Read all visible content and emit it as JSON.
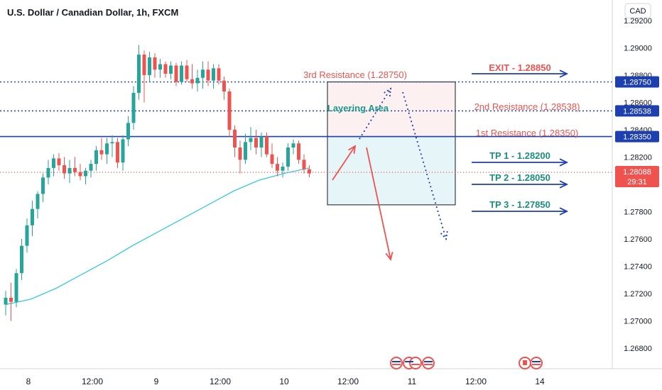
{
  "header": {
    "title": "U.S. Dollar / Canadian Dollar, 1h, FXCM",
    "currency": "CAD"
  },
  "chart_data": {
    "type": "candlestick",
    "title": "U.S. Dollar / Canadian Dollar, 1h, FXCM",
    "ylim": [
      1.2665,
      1.2935
    ],
    "y_ticks": [
      "1.29200",
      "1.29000",
      "1.28800",
      "1.28600",
      "1.28400",
      "1.28200",
      "1.28000",
      "1.27800",
      "1.27600",
      "1.27400",
      "1.27200",
      "1.27000",
      "1.26800"
    ],
    "x_ticks": [
      "8",
      "12:00",
      "9",
      "12:00",
      "10",
      "12:00",
      "11",
      "12:00",
      "14"
    ],
    "x_tick_bars": [
      0,
      12,
      24,
      36,
      48,
      60,
      72,
      84,
      96
    ],
    "candles": [
      {
        "o": 1.2712,
        "h": 1.2722,
        "l": 1.2704,
        "c": 1.2717
      },
      {
        "o": 1.2717,
        "h": 1.2728,
        "l": 1.27,
        "c": 1.2714
      },
      {
        "o": 1.2714,
        "h": 1.2738,
        "l": 1.271,
        "c": 1.2735
      },
      {
        "o": 1.2735,
        "h": 1.276,
        "l": 1.273,
        "c": 1.2755
      },
      {
        "o": 1.2755,
        "h": 1.2775,
        "l": 1.275,
        "c": 1.277
      },
      {
        "o": 1.277,
        "h": 1.2788,
        "l": 1.2762,
        "c": 1.2782
      },
      {
        "o": 1.2782,
        "h": 1.2795,
        "l": 1.2775,
        "c": 1.2793
      },
      {
        "o": 1.2793,
        "h": 1.2808,
        "l": 1.2787,
        "c": 1.2805
      },
      {
        "o": 1.2805,
        "h": 1.2818,
        "l": 1.28,
        "c": 1.2812
      },
      {
        "o": 1.2812,
        "h": 1.2822,
        "l": 1.2806,
        "c": 1.2819
      },
      {
        "o": 1.2819,
        "h": 1.2823,
        "l": 1.281,
        "c": 1.2814
      },
      {
        "o": 1.2814,
        "h": 1.282,
        "l": 1.2804,
        "c": 1.2808
      },
      {
        "o": 1.2808,
        "h": 1.2818,
        "l": 1.2801,
        "c": 1.2812
      },
      {
        "o": 1.2812,
        "h": 1.282,
        "l": 1.2806,
        "c": 1.2809
      },
      {
        "o": 1.2809,
        "h": 1.2815,
        "l": 1.2803,
        "c": 1.2806
      },
      {
        "o": 1.2806,
        "h": 1.2812,
        "l": 1.28,
        "c": 1.281
      },
      {
        "o": 1.281,
        "h": 1.2818,
        "l": 1.2805,
        "c": 1.2815
      },
      {
        "o": 1.2815,
        "h": 1.2828,
        "l": 1.281,
        "c": 1.2825
      },
      {
        "o": 1.2825,
        "h": 1.2834,
        "l": 1.2818,
        "c": 1.2822
      },
      {
        "o": 1.2822,
        "h": 1.2834,
        "l": 1.2815,
        "c": 1.283
      },
      {
        "o": 1.283,
        "h": 1.2836,
        "l": 1.282,
        "c": 1.2831
      },
      {
        "o": 1.2831,
        "h": 1.2834,
        "l": 1.2812,
        "c": 1.2816
      },
      {
        "o": 1.2816,
        "h": 1.2836,
        "l": 1.281,
        "c": 1.2833
      },
      {
        "o": 1.2833,
        "h": 1.285,
        "l": 1.2828,
        "c": 1.2845
      },
      {
        "o": 1.2845,
        "h": 1.2872,
        "l": 1.284,
        "c": 1.2867
      },
      {
        "o": 1.2867,
        "h": 1.2902,
        "l": 1.2862,
        "c": 1.2895
      },
      {
        "o": 1.2895,
        "h": 1.2898,
        "l": 1.286,
        "c": 1.288
      },
      {
        "o": 1.288,
        "h": 1.2897,
        "l": 1.2875,
        "c": 1.2893
      },
      {
        "o": 1.2893,
        "h": 1.2896,
        "l": 1.2878,
        "c": 1.2884
      },
      {
        "o": 1.2884,
        "h": 1.2892,
        "l": 1.2878,
        "c": 1.2888
      },
      {
        "o": 1.2888,
        "h": 1.289,
        "l": 1.2878,
        "c": 1.2881
      },
      {
        "o": 1.2881,
        "h": 1.289,
        "l": 1.2877,
        "c": 1.2887
      },
      {
        "o": 1.2887,
        "h": 1.2889,
        "l": 1.2872,
        "c": 1.2875
      },
      {
        "o": 1.2875,
        "h": 1.289,
        "l": 1.2873,
        "c": 1.2887
      },
      {
        "o": 1.2887,
        "h": 1.2891,
        "l": 1.2875,
        "c": 1.2877
      },
      {
        "o": 1.2877,
        "h": 1.2888,
        "l": 1.287,
        "c": 1.2874
      },
      {
        "o": 1.2874,
        "h": 1.2884,
        "l": 1.2868,
        "c": 1.2878
      },
      {
        "o": 1.2878,
        "h": 1.289,
        "l": 1.287,
        "c": 1.2884
      },
      {
        "o": 1.2884,
        "h": 1.289,
        "l": 1.2872,
        "c": 1.2876
      },
      {
        "o": 1.2876,
        "h": 1.2888,
        "l": 1.287,
        "c": 1.2885
      },
      {
        "o": 1.2885,
        "h": 1.2888,
        "l": 1.2873,
        "c": 1.2876
      },
      {
        "o": 1.2876,
        "h": 1.2879,
        "l": 1.2862,
        "c": 1.2868
      },
      {
        "o": 1.2868,
        "h": 1.287,
        "l": 1.2835,
        "c": 1.284
      },
      {
        "o": 1.284,
        "h": 1.2843,
        "l": 1.282,
        "c": 1.2827
      },
      {
        "o": 1.2827,
        "h": 1.2832,
        "l": 1.2808,
        "c": 1.2818
      },
      {
        "o": 1.2818,
        "h": 1.2837,
        "l": 1.2815,
        "c": 1.2831
      },
      {
        "o": 1.2831,
        "h": 1.2842,
        "l": 1.2825,
        "c": 1.2834
      },
      {
        "o": 1.2834,
        "h": 1.284,
        "l": 1.2822,
        "c": 1.2827
      },
      {
        "o": 1.2827,
        "h": 1.2838,
        "l": 1.282,
        "c": 1.2835
      },
      {
        "o": 1.2835,
        "h": 1.2838,
        "l": 1.282,
        "c": 1.2822
      },
      {
        "o": 1.2822,
        "h": 1.283,
        "l": 1.2812,
        "c": 1.2815
      },
      {
        "o": 1.2815,
        "h": 1.282,
        "l": 1.2806,
        "c": 1.281
      },
      {
        "o": 1.281,
        "h": 1.2816,
        "l": 1.2805,
        "c": 1.2813
      },
      {
        "o": 1.2813,
        "h": 1.283,
        "l": 1.281,
        "c": 1.2827
      },
      {
        "o": 1.2827,
        "h": 1.2833,
        "l": 1.2822,
        "c": 1.283
      },
      {
        "o": 1.283,
        "h": 1.2832,
        "l": 1.2815,
        "c": 1.2818
      },
      {
        "o": 1.2818,
        "h": 1.2822,
        "l": 1.2808,
        "c": 1.2811
      },
      {
        "o": 1.2811,
        "h": 1.2814,
        "l": 1.2805,
        "c": 1.2808
      }
    ],
    "moving_average": {
      "color": "#26c6da",
      "points": [
        [
          0,
          1.2712
        ],
        [
          10,
          1.2716
        ],
        [
          20,
          1.2724
        ],
        [
          30,
          1.2734
        ],
        [
          40,
          1.2744
        ],
        [
          50,
          1.2755
        ],
        [
          60,
          1.2765
        ],
        [
          70,
          1.2775
        ],
        [
          80,
          1.2785
        ],
        [
          90,
          1.2795
        ],
        [
          100,
          1.2803
        ],
        [
          110,
          1.2808
        ],
        [
          120,
          1.2812
        ]
      ],
      "x_bars": 57
    },
    "levels": [
      {
        "name": "3rd Resistance",
        "price": "1.28750",
        "value": 1.2875,
        "style": "dotted",
        "color": "#1e3fae"
      },
      {
        "name": "2nd Resistance",
        "price": "1.28538",
        "value": 1.28538,
        "style": "dotted",
        "color": "#1e3fae"
      },
      {
        "name": "1st Resistance",
        "price": "1.28350",
        "value": 1.2835,
        "style": "solid",
        "color": "#1e3fae"
      },
      {
        "name": "current",
        "price": "1.28088",
        "value": 1.28088,
        "style": "dotted",
        "color": "#ef5350"
      }
    ],
    "annotations": {
      "third_resistance": "3rd Resistance (1.28750)",
      "second_resistance": "2nd Resistance (1.28538)",
      "first_resistance": "1st Resistance (1.28350)",
      "layering_area": "Layering Area",
      "exit": "EXIT - 1.28850",
      "tp1": "TP 1 - 1.28200",
      "tp2": "TP 2 - 1.28050",
      "tp3": "TP 3 - 1.27850"
    },
    "zones": [
      {
        "name": "layering",
        "top": 1.2875,
        "bottom": 1.2835,
        "color": "#fdf0f0"
      },
      {
        "name": "target",
        "top": 1.2835,
        "bottom": 1.2785,
        "color": "#e6f6f8"
      }
    ],
    "price_tags": {
      "r3": "1.28750",
      "r2": "1.28538",
      "r1": "1.28350",
      "current": "1.28088",
      "countdown": "29:31"
    },
    "colors": {
      "up": "#26a69a",
      "down": "#ef5350",
      "level": "#1e3fae",
      "exit_text": "#ef5350",
      "tp_text": "#1a8f7d",
      "layering_text": "#1a9a8a"
    }
  }
}
